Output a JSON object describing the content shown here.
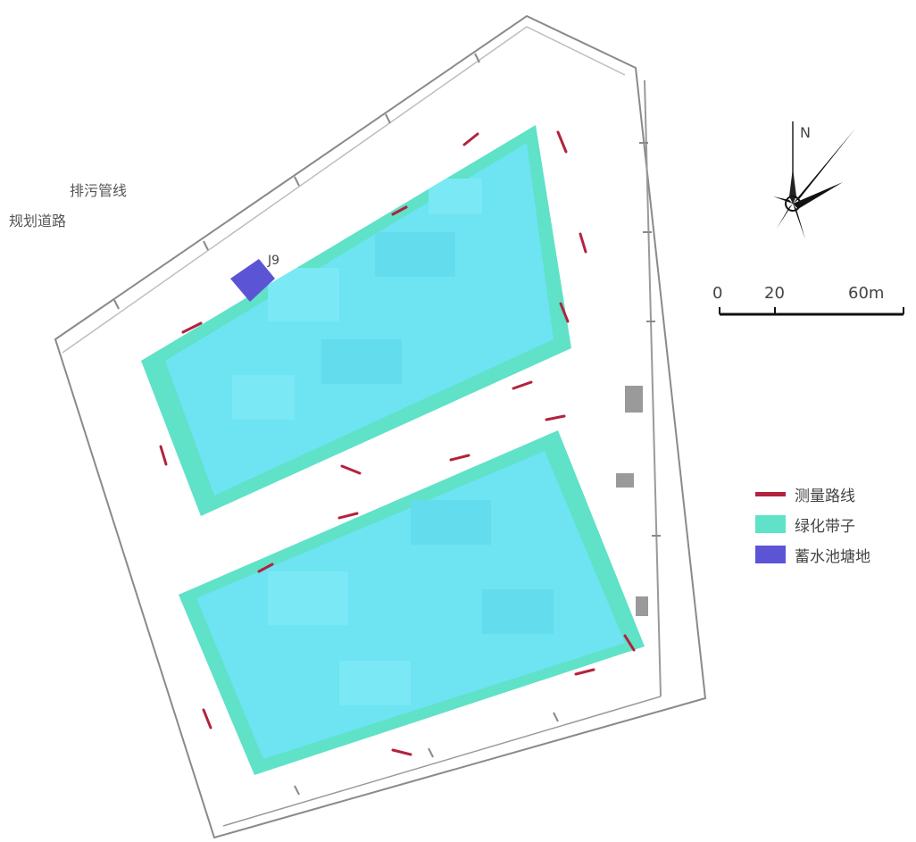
{
  "road_labels": {
    "primary": "排污管线",
    "secondary": "规划道路"
  },
  "well_label": "J9",
  "compass": {
    "north": "N"
  },
  "scale_bar": {
    "ticks": [
      "0",
      "20",
      "60m"
    ]
  },
  "legend": {
    "items": [
      {
        "label": "测量路线",
        "symbol": "line",
        "color": "#b3223e"
      },
      {
        "label": "绿化带子",
        "symbol": "fill",
        "color": "#5fe2c7"
      },
      {
        "label": "蓄水池塘地",
        "symbol": "fill",
        "color": "#5b55d6"
      }
    ]
  },
  "colors": {
    "zone_cyan": "#6ee3f2",
    "zone_green": "#5fe2c7",
    "pond_blue": "#5b55d6",
    "route_red": "#b3223e",
    "boundary": "#8a8a8a"
  }
}
